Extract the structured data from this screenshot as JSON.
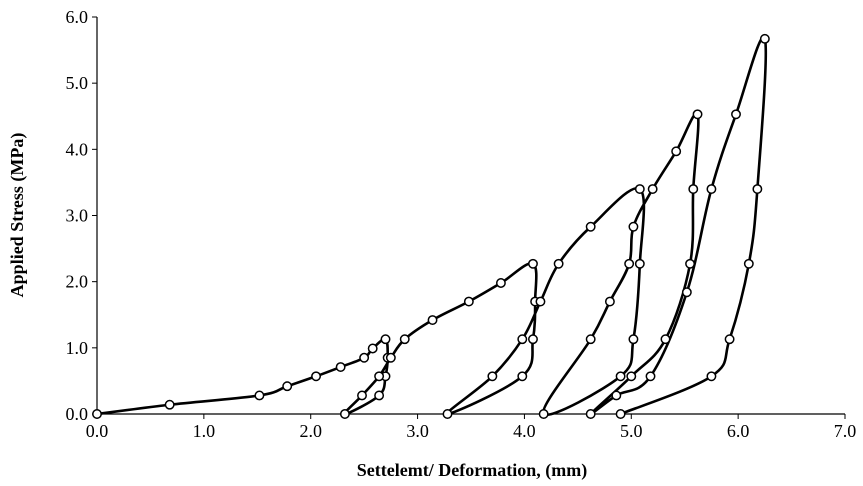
{
  "chart_data": {
    "type": "line",
    "title": "",
    "xlabel": "Settelemt/ Deformation, (mm)",
    "ylabel": "Applied Stress (MPa)",
    "xlim": [
      0,
      7
    ],
    "ylim": [
      0,
      6
    ],
    "x_ticks": [
      "0.0",
      "1.0",
      "2.0",
      "3.0",
      "4.0",
      "5.0",
      "6.0",
      "7.0"
    ],
    "y_ticks": [
      "0.0",
      "1.0",
      "2.0",
      "3.0",
      "4.0",
      "5.0",
      "6.0"
    ],
    "grid": false,
    "legend": "none",
    "series": [
      {
        "line_color": "#000000",
        "marker": "circle-open",
        "points": [
          [
            0.0,
            0.0
          ],
          [
            0.68,
            0.14
          ],
          [
            1.52,
            0.28
          ],
          [
            1.78,
            0.42
          ],
          [
            2.05,
            0.57
          ],
          [
            2.28,
            0.71
          ],
          [
            2.5,
            0.85
          ],
          [
            2.58,
            0.99
          ],
          [
            2.7,
            1.13
          ],
          [
            2.72,
            0.85
          ],
          [
            2.7,
            0.57
          ],
          [
            2.64,
            0.28
          ],
          [
            2.32,
            0.0
          ],
          [
            2.48,
            0.28
          ],
          [
            2.64,
            0.57
          ],
          [
            2.75,
            0.85
          ],
          [
            2.88,
            1.13
          ],
          [
            3.14,
            1.42
          ],
          [
            3.48,
            1.7
          ],
          [
            3.78,
            1.98
          ],
          [
            4.08,
            2.27
          ],
          [
            4.1,
            1.7
          ],
          [
            4.08,
            1.13
          ],
          [
            3.98,
            0.57
          ],
          [
            3.28,
            0.0
          ],
          [
            3.7,
            0.57
          ],
          [
            3.98,
            1.13
          ],
          [
            4.15,
            1.7
          ],
          [
            4.32,
            2.27
          ],
          [
            4.62,
            2.83
          ],
          [
            5.08,
            3.4
          ],
          [
            5.08,
            2.27
          ],
          [
            5.02,
            1.13
          ],
          [
            4.9,
            0.57
          ],
          [
            4.18,
            0.0
          ],
          [
            4.62,
            1.13
          ],
          [
            4.8,
            1.7
          ],
          [
            4.98,
            2.27
          ],
          [
            5.02,
            2.83
          ],
          [
            5.2,
            3.4
          ],
          [
            5.42,
            3.97
          ],
          [
            5.62,
            4.53
          ],
          [
            5.58,
            3.4
          ],
          [
            5.55,
            2.27
          ],
          [
            5.32,
            1.13
          ],
          [
            5.0,
            0.57
          ],
          [
            4.62,
            0.0
          ],
          [
            4.86,
            0.28
          ],
          [
            5.18,
            0.57
          ],
          [
            5.52,
            1.84
          ],
          [
            5.75,
            3.4
          ],
          [
            5.98,
            4.53
          ],
          [
            6.25,
            5.67
          ],
          [
            6.18,
            3.4
          ],
          [
            6.1,
            2.27
          ],
          [
            5.92,
            1.13
          ],
          [
            5.75,
            0.57
          ],
          [
            4.9,
            0.0
          ]
        ]
      }
    ]
  }
}
